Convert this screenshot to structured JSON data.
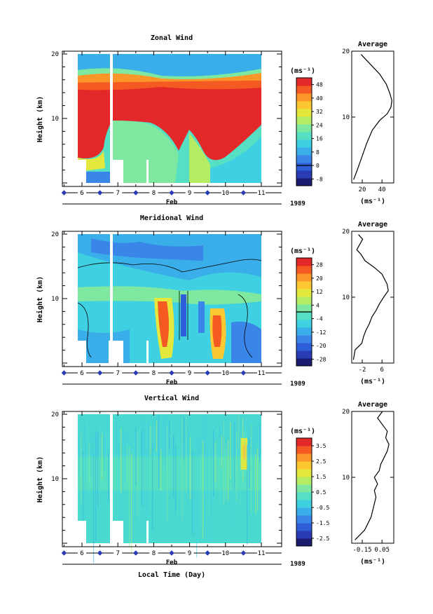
{
  "figure": {
    "xlabel": "Local Time (Day)",
    "month_label": "Feb",
    "year_label": "1989"
  },
  "colors": {
    "palette": [
      "#ffffff",
      "#1a1a6e",
      "#2a3cb4",
      "#2f5fd8",
      "#3a86e8",
      "#39aee8",
      "#3fd0e2",
      "#55e0c4",
      "#7ee8a0",
      "#b4ec64",
      "#e4e83c",
      "#fcc832",
      "#fc9628",
      "#f45a22",
      "#e22828"
    ]
  },
  "chart_data": [
    {
      "id": "zonal",
      "type": "heatmap",
      "title": "Zonal Wind",
      "ylabel": "Height (km)",
      "xlim": [
        5.0,
        11.0
      ],
      "ylim": [
        0,
        20
      ],
      "xticks": [
        6,
        7,
        8,
        9,
        10,
        11
      ],
      "yticks": [
        10,
        20
      ],
      "unit_label": "(ms⁻¹)",
      "colorbar": {
        "levels": [
          -8,
          0,
          8,
          16,
          24,
          32,
          40,
          48
        ],
        "range": [
          -12,
          52
        ],
        "contour_at": 0
      },
      "avg_panel": {
        "title": "Average",
        "xticks": [
          "20",
          "40"
        ],
        "xlim": [
          10,
          55
        ],
        "xunit": "(ms⁻¹)",
        "profile": [
          [
            12,
            0.5
          ],
          [
            16,
            2
          ],
          [
            21,
            4
          ],
          [
            26,
            6
          ],
          [
            32,
            8
          ],
          [
            40,
            9.5
          ],
          [
            48,
            10.5
          ],
          [
            52,
            11.5
          ],
          [
            53,
            12.5
          ],
          [
            51,
            13.5
          ],
          [
            47,
            15
          ],
          [
            40,
            16.5
          ],
          [
            30,
            18
          ],
          [
            20,
            19.5
          ]
        ]
      }
    },
    {
      "id": "meridional",
      "type": "heatmap",
      "title": "Meridional Wind",
      "ylabel": "Height (km)",
      "xlim": [
        5.0,
        11.0
      ],
      "ylim": [
        0,
        20
      ],
      "xticks": [
        6,
        7,
        8,
        9,
        10,
        11
      ],
      "yticks": [
        10,
        20
      ],
      "unit_label": "(ms⁻¹)",
      "colorbar": {
        "levels": [
          -28,
          -20,
          -12,
          -4,
          4,
          12,
          20,
          28
        ],
        "range": [
          -32,
          32
        ],
        "contour_at": 0
      },
      "avg_panel": {
        "title": "Average",
        "xticks": [
          "-2",
          "6"
        ],
        "xlim": [
          -3,
          7
        ],
        "xunit": "(ms⁻¹)",
        "profile": [
          [
            -2.6,
            0.5
          ],
          [
            -2.2,
            2
          ],
          [
            -0.6,
            3
          ],
          [
            -0.2,
            4
          ],
          [
            0.4,
            5
          ],
          [
            1.2,
            6
          ],
          [
            1.8,
            7
          ],
          [
            2.8,
            8
          ],
          [
            3.6,
            9
          ],
          [
            4.6,
            10
          ],
          [
            5.7,
            11
          ],
          [
            5.4,
            12
          ],
          [
            4.2,
            13.5
          ],
          [
            2.4,
            14.5
          ],
          [
            0.2,
            15.5
          ],
          [
            -0.8,
            16.5
          ],
          [
            -1.8,
            17.2
          ],
          [
            -1.1,
            18
          ],
          [
            -0.4,
            18.8
          ],
          [
            -1.4,
            19.5
          ]
        ]
      }
    },
    {
      "id": "vertical",
      "type": "heatmap",
      "title": "Vertical Wind",
      "ylabel": "Height (km)",
      "xlim": [
        5.0,
        11.0
      ],
      "ylim": [
        0,
        20
      ],
      "xticks": [
        6,
        7,
        8,
        9,
        10,
        11
      ],
      "yticks": [
        10,
        20
      ],
      "unit_label": "(ms⁻¹)",
      "colorbar": {
        "levels": [
          -2.5,
          -1.5,
          -0.5,
          0.5,
          1.5,
          2.5,
          3.5
        ],
        "range": [
          -3.0,
          4.0
        ]
      },
      "avg_panel": {
        "title": "Average",
        "xticks": [
          "-0.15",
          "0.05"
        ],
        "xlim": [
          -0.18,
          0.08
        ],
        "xunit": "(ms⁻¹)",
        "profile": [
          [
            -0.16,
            0.5
          ],
          [
            -0.14,
            1
          ],
          [
            -0.1,
            2
          ],
          [
            -0.08,
            3
          ],
          [
            -0.06,
            4
          ],
          [
            -0.05,
            5
          ],
          [
            -0.04,
            6
          ],
          [
            -0.03,
            7
          ],
          [
            -0.04,
            8
          ],
          [
            -0.02,
            9
          ],
          [
            -0.04,
            10
          ],
          [
            -0.01,
            11
          ],
          [
            0.0,
            12
          ],
          [
            0.02,
            13
          ],
          [
            0.04,
            14
          ],
          [
            0.05,
            15
          ],
          [
            0.03,
            16
          ],
          [
            0.04,
            17
          ],
          [
            0.01,
            18
          ],
          [
            -0.02,
            19
          ],
          [
            0.01,
            20
          ]
        ]
      }
    }
  ]
}
